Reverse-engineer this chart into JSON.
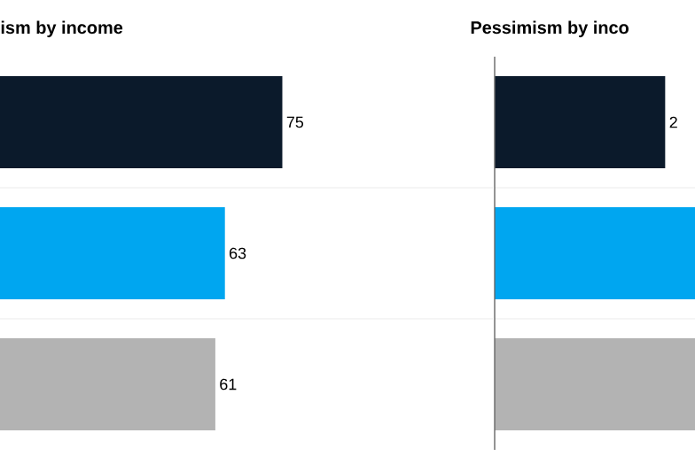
{
  "chart_data": [
    {
      "type": "bar",
      "orientation": "horizontal",
      "title": "ism by income",
      "categories": [
        null,
        null,
        null
      ],
      "values": [
        75,
        63,
        61
      ],
      "colors": [
        "#0b1a2b",
        "#00a6f0",
        "#b3b3b3"
      ],
      "xlim": [
        16,
        119
      ],
      "data_labels": true,
      "grid": true
    },
    {
      "type": "bar",
      "orientation": "horizontal",
      "title": "Pessimism by inco",
      "categories": [
        null,
        null,
        null
      ],
      "values": [
        2,
        2.35,
        2.35
      ],
      "colors": [
        "#0b1a2b",
        "#00a6f0",
        "#b3b3b3"
      ],
      "xlim": [
        0,
        2.35
      ],
      "value_labels": [
        "2",
        null,
        null
      ],
      "grid": true
    }
  ]
}
